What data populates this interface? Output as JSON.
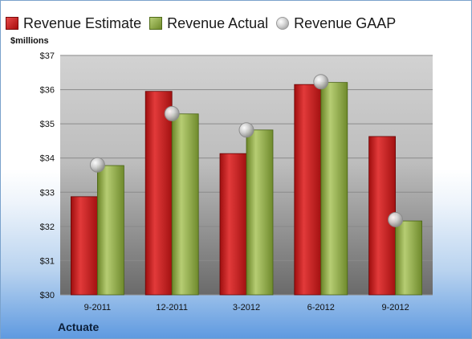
{
  "legend": {
    "estimate": "Revenue Estimate",
    "actual": "Revenue Actual",
    "gaap": "Revenue GAAP"
  },
  "unit_label": "$millions",
  "brand_label": "Actuate",
  "colors": {
    "estimate": "#c81e1e",
    "actual": "#8fac46",
    "gaap": "#c9c9c9",
    "plot_background_top": "#c4c4c4",
    "plot_background_bottom": "#6e6e6e"
  },
  "chart_data": {
    "type": "bar",
    "categories": [
      "9-2011",
      "12-2011",
      "3-2012",
      "6-2012",
      "9-2012"
    ],
    "series": [
      {
        "name": "Revenue Estimate",
        "values": [
          32.87,
          35.95,
          34.13,
          36.15,
          34.63
        ]
      },
      {
        "name": "Revenue Actual",
        "values": [
          33.78,
          35.29,
          34.82,
          36.21,
          32.16
        ]
      },
      {
        "name": "Revenue GAAP",
        "values": [
          33.8,
          35.3,
          34.82,
          36.23,
          32.2
        ],
        "marker": "circle"
      }
    ],
    "ylim": [
      30,
      37
    ],
    "yticks": [
      "$30",
      "$31",
      "$32",
      "$33",
      "$34",
      "$35",
      "$36",
      "$37"
    ],
    "ytick_values": [
      30,
      31,
      32,
      33,
      34,
      35,
      36,
      37
    ],
    "grid": true,
    "legend_position": "top"
  }
}
